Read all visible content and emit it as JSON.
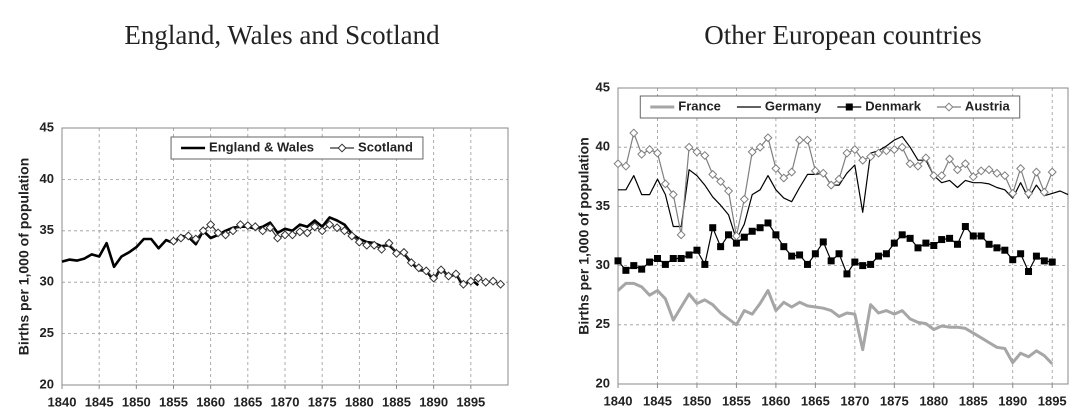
{
  "chart_data": [
    {
      "type": "line",
      "title": "England, Wales and Scotland",
      "y_label": "Births per 1,000 of population",
      "x": [
        1840,
        1841,
        1842,
        1843,
        1844,
        1845,
        1846,
        1847,
        1848,
        1849,
        1850,
        1851,
        1852,
        1853,
        1854,
        1855,
        1856,
        1857,
        1858,
        1859,
        1860,
        1861,
        1862,
        1863,
        1864,
        1865,
        1866,
        1867,
        1868,
        1869,
        1870,
        1871,
        1872,
        1873,
        1874,
        1875,
        1876,
        1877,
        1878,
        1879,
        1880,
        1881,
        1882,
        1883,
        1884,
        1885,
        1886,
        1887,
        1888,
        1889,
        1890,
        1891,
        1892,
        1893,
        1894,
        1895,
        1896,
        1897,
        1898,
        1899
      ],
      "series": [
        {
          "name": "England & Wales",
          "color": "#000000",
          "marker": null,
          "values": [
            32.0,
            32.2,
            32.1,
            32.3,
            32.7,
            32.5,
            33.8,
            31.5,
            32.5,
            32.9,
            33.4,
            34.2,
            34.2,
            33.3,
            34.1,
            33.8,
            34.5,
            34.4,
            33.7,
            35.0,
            34.3,
            34.6,
            35.0,
            35.3,
            35.4,
            35.4,
            35.2,
            35.4,
            35.8,
            34.8,
            35.2,
            35.0,
            35.6,
            35.4,
            36.0,
            35.4,
            36.3,
            36.0,
            35.6,
            34.7,
            34.2,
            33.9,
            33.8,
            33.5,
            33.6,
            32.9,
            32.8,
            31.9,
            31.2,
            31.1,
            30.2,
            31.4,
            30.5,
            30.8,
            29.6,
            30.3,
            29.7,
            null,
            null,
            null
          ]
        },
        {
          "name": "Scotland",
          "color": "#333333",
          "marker": "diamond-open",
          "values": [
            null,
            null,
            null,
            null,
            null,
            null,
            null,
            null,
            null,
            null,
            null,
            null,
            null,
            null,
            null,
            34.0,
            34.3,
            34.5,
            34.2,
            35.0,
            35.6,
            34.8,
            34.6,
            35.0,
            35.6,
            35.5,
            35.4,
            35.0,
            35.3,
            34.3,
            34.6,
            34.6,
            34.9,
            34.8,
            35.4,
            35.0,
            35.6,
            35.3,
            35.0,
            34.5,
            33.9,
            33.6,
            33.6,
            33.2,
            33.8,
            32.8,
            32.9,
            31.9,
            31.4,
            31.1,
            30.4,
            31.2,
            30.6,
            30.8,
            29.8,
            30.1,
            30.4,
            30.0,
            30.1,
            29.8
          ]
        }
      ],
      "xlim": [
        1840,
        1900
      ],
      "xticks": [
        1840,
        1845,
        1850,
        1855,
        1860,
        1865,
        1870,
        1875,
        1880,
        1885,
        1890,
        1895
      ],
      "ylim": [
        20,
        45
      ],
      "yticks": [
        20,
        25,
        30,
        35,
        40,
        45
      ],
      "grid": true,
      "legend": "top"
    },
    {
      "type": "line",
      "title": "Other European countries",
      "y_label": "Births per 1,000 of population",
      "x": [
        1840,
        1841,
        1842,
        1843,
        1844,
        1845,
        1846,
        1847,
        1848,
        1849,
        1850,
        1851,
        1852,
        1853,
        1854,
        1855,
        1856,
        1857,
        1858,
        1859,
        1860,
        1861,
        1862,
        1863,
        1864,
        1865,
        1866,
        1867,
        1868,
        1869,
        1870,
        1871,
        1872,
        1873,
        1874,
        1875,
        1876,
        1877,
        1878,
        1879,
        1880,
        1881,
        1882,
        1883,
        1884,
        1885,
        1886,
        1887,
        1888,
        1889,
        1890,
        1891,
        1892,
        1893,
        1894,
        1895,
        1896,
        1897
      ],
      "series": [
        {
          "name": "France",
          "color": "#a6a6a6",
          "marker": null,
          "values": [
            27.9,
            28.5,
            28.5,
            28.2,
            27.5,
            27.9,
            27.2,
            25.4,
            26.5,
            27.6,
            26.8,
            27.1,
            26.7,
            26.0,
            25.5,
            25.0,
            26.2,
            25.9,
            26.8,
            27.9,
            26.2,
            26.9,
            26.5,
            26.9,
            26.6,
            26.5,
            26.4,
            26.2,
            25.7,
            26.0,
            25.9,
            22.9,
            26.7,
            26.0,
            26.2,
            25.9,
            26.2,
            25.5,
            25.2,
            25.1,
            24.6,
            24.9,
            24.8,
            24.8,
            24.7,
            24.3,
            23.9,
            23.5,
            23.1,
            23.0,
            21.8,
            22.6,
            22.3,
            22.8,
            22.4,
            21.7,
            null,
            null
          ]
        },
        {
          "name": "Germany",
          "color": "#000000",
          "marker": null,
          "values": [
            36.4,
            36.4,
            37.6,
            36.0,
            36.0,
            37.3,
            36.0,
            33.3,
            33.3,
            38.1,
            37.6,
            36.8,
            35.8,
            35.1,
            34.3,
            32.2,
            33.5,
            36.0,
            36.4,
            37.6,
            36.4,
            35.7,
            35.4,
            36.6,
            37.7,
            37.7,
            37.8,
            36.8,
            36.8,
            37.8,
            38.5,
            34.5,
            39.5,
            39.7,
            40.1,
            40.6,
            40.9,
            40.0,
            38.9,
            38.9,
            37.6,
            37.0,
            37.2,
            36.6,
            37.2,
            37.0,
            37.0,
            36.9,
            36.6,
            36.4,
            35.7,
            37.0,
            35.7,
            36.8,
            35.9,
            36.1,
            36.3,
            36.0
          ]
        },
        {
          "name": "Denmark",
          "color": "#000000",
          "marker": "square",
          "values": [
            30.4,
            29.6,
            30.0,
            29.7,
            30.3,
            30.6,
            30.1,
            30.6,
            30.6,
            30.9,
            31.3,
            30.1,
            33.2,
            31.6,
            32.6,
            31.9,
            32.4,
            32.9,
            33.2,
            33.6,
            32.6,
            31.6,
            30.8,
            30.9,
            30.1,
            31.0,
            32.0,
            30.4,
            31.0,
            29.3,
            30.3,
            30.0,
            30.1,
            30.8,
            31.0,
            31.9,
            32.6,
            32.3,
            31.5,
            31.9,
            31.7,
            32.2,
            32.3,
            31.8,
            33.3,
            32.5,
            32.5,
            31.8,
            31.5,
            31.3,
            30.5,
            31.0,
            29.5,
            30.8,
            30.4,
            30.3,
            null,
            null
          ]
        },
        {
          "name": "Austria",
          "color": "#7f7f7f",
          "marker": "diamond-open",
          "values": [
            38.6,
            38.4,
            41.2,
            39.4,
            39.8,
            39.5,
            36.9,
            36.0,
            32.6,
            40.0,
            39.6,
            39.3,
            37.7,
            37.1,
            36.3,
            32.5,
            35.6,
            39.6,
            40.0,
            40.8,
            38.2,
            37.4,
            37.9,
            40.6,
            40.6,
            38.0,
            37.8,
            36.8,
            37.3,
            39.5,
            39.8,
            38.9,
            39.2,
            39.5,
            39.7,
            39.8,
            40.0,
            38.6,
            38.4,
            39.1,
            37.6,
            37.6,
            39.0,
            38.1,
            38.6,
            37.5,
            38.0,
            38.1,
            37.8,
            37.6,
            36.1,
            38.2,
            36.1,
            37.9,
            36.2,
            37.9,
            null,
            null
          ]
        }
      ],
      "xlim": [
        1840,
        1897
      ],
      "xticks": [
        1840,
        1845,
        1850,
        1855,
        1860,
        1865,
        1870,
        1875,
        1880,
        1885,
        1890,
        1895
      ],
      "ylim": [
        20,
        45
      ],
      "yticks": [
        20,
        25,
        30,
        35,
        40,
        45
      ],
      "grid": true,
      "legend": "top"
    }
  ]
}
